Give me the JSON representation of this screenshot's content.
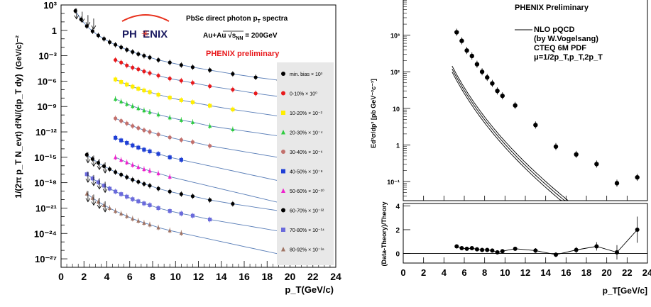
{
  "colors": {
    "curve_left": "#5b7fb8",
    "curve_right": "#000000",
    "logo_accent": "#e8321e",
    "preliminary_red": "#e8191c"
  },
  "left_panel": {
    "logo_text": "PH  ENIX",
    "title": "PbSc direct photon p",
    "title_sub": "T",
    "title_suffix": " spectra",
    "system": "Au+Au √s",
    "system_sub": "NN",
    "system_suffix": " = 200GeV",
    "preliminary": "PHENIX preliminary",
    "ylabel_main": "1/(2π p_T N_evt) d²N/(dp_T dy)",
    "ylabel_unit": "(GeV/c)⁻²",
    "xlabel": "p_T(GeV/c)"
  },
  "right_panel": {
    "title": "PHENIX Preliminary",
    "legend": [
      "NLO pQCD",
      "(by W.Vogelsang)",
      "CTEQ 6M PDF",
      "μ=1/2p_T,p_T,2p_T"
    ],
    "ylabel": "Ed³σ/dp³ [pb GeV⁻²c⁻³]",
    "ratio_ylabel": "(Data-Theory)/Theory",
    "xlabel": "p_T[GeV/c]"
  },
  "chart_data": [
    {
      "type": "scatter",
      "title": "PbSc direct photon pT spectra",
      "xlabel": "p_T(GeV/c)",
      "ylabel": "1/(2π p_T N_evt) d²N/(dp_T dy) (GeV/c)^-2",
      "x_scale": "linear",
      "y_scale": "log",
      "xlim": [
        0,
        24
      ],
      "ylim_exponent": [
        -28,
        3
      ],
      "x_ticks": [
        0,
        2,
        4,
        6,
        8,
        10,
        12,
        14,
        16,
        18,
        20,
        22,
        24
      ],
      "y_tick_labels": [
        {
          "exp": 3,
          "label": "10³"
        },
        {
          "exp": 0,
          "label": "1"
        },
        {
          "exp": -3,
          "label": "10⁻³"
        },
        {
          "exp": -6,
          "label": "10⁻⁶"
        },
        {
          "exp": -9,
          "label": "10⁻⁹"
        },
        {
          "exp": -12,
          "label": "10⁻¹²"
        },
        {
          "exp": -15,
          "label": "10⁻¹⁵"
        },
        {
          "exp": -18,
          "label": "10⁻¹⁸"
        },
        {
          "exp": -21,
          "label": "10⁻²¹"
        },
        {
          "exp": -24,
          "label": "10⁻²⁴"
        },
        {
          "exp": -27,
          "label": "10⁻²⁷"
        }
      ],
      "legend_position": "right",
      "series": [
        {
          "name": "min. bias × 10³",
          "color": "#000000",
          "marker": "circle",
          "x": [
            1.25,
            1.75,
            2.25,
            2.75,
            3.25,
            3.75,
            4.25,
            4.75,
            5.25,
            5.75,
            6.25,
            6.75,
            7.25,
            7.75,
            8.5,
            9.5,
            10.5,
            11.5,
            13,
            15,
            17,
            19
          ],
          "log10y": [
            2.3,
            1.3,
            0.5,
            -0.1,
            -0.6,
            -1.0,
            -1.4,
            -1.7,
            -2.0,
            -2.3,
            -2.55,
            -2.8,
            -3.0,
            -3.2,
            -3.5,
            -3.8,
            -4.1,
            -4.35,
            -4.7,
            -5.15,
            -5.55,
            -5.9
          ]
        },
        {
          "name": "0-10% × 10⁰",
          "color": "#e8191c",
          "marker": "circle",
          "x": [
            4.75,
            5.25,
            5.75,
            6.25,
            6.75,
            7.25,
            7.75,
            8.5,
            9.5,
            10.5,
            11.5,
            13,
            15,
            17
          ],
          "log10y": [
            -3.5,
            -3.8,
            -4.15,
            -4.4,
            -4.6,
            -4.85,
            -5.05,
            -5.35,
            -5.7,
            -5.95,
            -6.2,
            -6.6,
            -7.0,
            -7.45
          ]
        },
        {
          "name": "10-20% × 10⁻²",
          "color": "#ffee00",
          "marker": "square",
          "x": [
            4.75,
            5.25,
            5.75,
            6.25,
            6.75,
            7.25,
            7.75,
            8.5,
            9.5,
            10.5,
            11.5,
            13,
            15
          ],
          "log10y": [
            -5.8,
            -6.1,
            -6.4,
            -6.65,
            -6.9,
            -7.1,
            -7.3,
            -7.6,
            -7.95,
            -8.25,
            -8.5,
            -8.9,
            -9.35
          ]
        },
        {
          "name": "20-30% × 10⁻⁴",
          "color": "#2ecc40",
          "marker": "triangle",
          "x": [
            4.75,
            5.25,
            5.75,
            6.25,
            6.75,
            7.25,
            7.75,
            8.5,
            9.5,
            10.5,
            11.5,
            13,
            15
          ],
          "log10y": [
            -8.1,
            -8.4,
            -8.7,
            -8.95,
            -9.2,
            -9.45,
            -9.65,
            -9.95,
            -10.3,
            -10.6,
            -10.85,
            -11.3,
            -11.7
          ]
        },
        {
          "name": "30-40% × 10⁻⁶",
          "color": "#c2706c",
          "marker": "circle",
          "x": [
            4.75,
            5.25,
            5.75,
            6.25,
            6.75,
            7.25,
            7.75,
            8.5,
            9.5,
            10.5,
            11.5,
            13
          ],
          "log10y": [
            -10.4,
            -10.7,
            -11.0,
            -11.3,
            -11.55,
            -11.8,
            -12.0,
            -12.3,
            -12.65,
            -12.95,
            -13.2,
            -13.65
          ]
        },
        {
          "name": "40-50% × 10⁻⁸",
          "color": "#1f3fd6",
          "marker": "square",
          "x": [
            4.75,
            5.25,
            5.75,
            6.25,
            6.75,
            7.25,
            7.75,
            8.5,
            9.5,
            10.5
          ],
          "log10y": [
            -12.7,
            -13.0,
            -13.3,
            -13.6,
            -13.85,
            -14.1,
            -14.3,
            -14.6,
            -15.0,
            -15.3
          ]
        },
        {
          "name": "50-60% × 10⁻¹⁰",
          "color": "#ee22cc",
          "marker": "triangle",
          "x": [
            4.75,
            5.25,
            5.75,
            6.25,
            6.75,
            7.25,
            7.75,
            8.5,
            9.5
          ],
          "log10y": [
            -15.0,
            -15.3,
            -15.6,
            -15.9,
            -16.15,
            -16.4,
            -16.6,
            -16.9,
            -17.3
          ]
        },
        {
          "name": "60-70% × 10⁻¹²",
          "color": "#000000",
          "marker": "circle",
          "x": [
            2.25,
            2.75,
            3.25,
            3.75,
            4.25,
            4.75,
            5.25,
            5.75,
            6.25,
            6.75,
            7.25,
            7.75,
            8.5,
            9.5,
            10.5,
            11.5,
            13,
            15
          ],
          "log10y": [
            -14.7,
            -15.2,
            -15.65,
            -16.05,
            -16.4,
            -16.75,
            -17.05,
            -17.35,
            -17.65,
            -17.9,
            -18.15,
            -18.35,
            -18.7,
            -19.05,
            -19.35,
            -19.6,
            -20.05,
            -20.5
          ]
        },
        {
          "name": "70-80% × 10⁻¹⁴",
          "color": "#6a6adc",
          "marker": "square",
          "x": [
            2.25,
            2.75,
            3.25,
            3.75,
            4.25,
            4.75,
            5.25,
            5.75,
            6.25,
            6.75,
            7.25,
            7.75,
            8.5,
            9.5,
            10.5,
            11.5,
            13
          ],
          "log10y": [
            -17.0,
            -17.5,
            -17.95,
            -18.35,
            -18.7,
            -19.05,
            -19.35,
            -19.65,
            -19.95,
            -20.2,
            -20.45,
            -20.65,
            -21.0,
            -21.35,
            -21.65,
            -21.9,
            -22.35
          ]
        },
        {
          "name": "80-92% × 10⁻¹⁶",
          "color": "#a07464",
          "marker": "triangle",
          "x": [
            2.25,
            2.75,
            3.25,
            3.75,
            4.25,
            4.75,
            5.25,
            5.75,
            6.25,
            6.75,
            7.25,
            7.75,
            8.5,
            9.5,
            10.5
          ],
          "log10y": [
            -19.3,
            -19.8,
            -20.25,
            -20.65,
            -21.0,
            -21.35,
            -21.65,
            -21.95,
            -22.25,
            -22.5,
            -22.75,
            -22.95,
            -23.3,
            -23.65,
            -23.95
          ]
        }
      ]
    },
    {
      "type": "scatter",
      "title": "PHENIX Preliminary",
      "xlabel": "p_T[GeV/c]",
      "ylabel": "Ed³σ/dp³ [pb GeV⁻²c⁻³]",
      "x_scale": "linear",
      "y_scale": "log",
      "xlim": [
        0,
        24
      ],
      "ylim": [
        0.03,
        10000
      ],
      "x_ticks": [
        0,
        2,
        4,
        6,
        8,
        10,
        12,
        14,
        16,
        18,
        20,
        22,
        24
      ],
      "y_tick_labels": [
        {
          "value": 1000,
          "label": "10³"
        },
        {
          "value": 100,
          "label": "10²"
        },
        {
          "value": 10,
          "label": "10"
        },
        {
          "value": 1,
          "label": "1"
        },
        {
          "value": 0.1,
          "label": "10⁻¹"
        }
      ],
      "series": [
        {
          "name": "data",
          "x": [
            5.25,
            5.75,
            6.25,
            6.75,
            7.25,
            7.75,
            8.25,
            8.75,
            9.25,
            9.75,
            11,
            13,
            15,
            17,
            19,
            21,
            23
          ],
          "y": [
            1200,
            700,
            380,
            270,
            160,
            100,
            70,
            48,
            30,
            22,
            12,
            3.5,
            0.9,
            0.55,
            0.3,
            0.09,
            0.13
          ]
        }
      ],
      "theory_curves": [
        {
          "scale_label": "1/2p_T",
          "A": 900000,
          "n": 4.9,
          "b": 0.22
        },
        {
          "scale_label": "p_T",
          "A": 750000,
          "n": 4.9,
          "b": 0.22
        },
        {
          "scale_label": "2p_T",
          "A": 620000,
          "n": 4.9,
          "b": 0.22
        }
      ]
    },
    {
      "type": "scatter",
      "title": "",
      "xlabel": "p_T[GeV/c]",
      "ylabel": "(Data-Theory)/Theory",
      "xlim": [
        0,
        24
      ],
      "ylim": [
        -0.8,
        4.2
      ],
      "x_ticks": [
        0,
        2,
        4,
        6,
        8,
        10,
        12,
        14,
        16,
        18,
        20,
        22,
        24
      ],
      "y_ticks": [
        0,
        2,
        4
      ],
      "series": [
        {
          "name": "ratio",
          "x": [
            5.25,
            5.75,
            6.25,
            6.75,
            7.25,
            7.75,
            8.25,
            8.75,
            9.25,
            9.75,
            11,
            13,
            15,
            17,
            19,
            21,
            23
          ],
          "y": [
            0.6,
            0.45,
            0.4,
            0.45,
            0.35,
            0.3,
            0.3,
            0.25,
            0.1,
            0.2,
            0.4,
            0.25,
            -0.1,
            0.3,
            0.6,
            0.1,
            2.0
          ],
          "err": [
            0.12,
            0.1,
            0.1,
            0.1,
            0.1,
            0.1,
            0.1,
            0.1,
            0.1,
            0.12,
            0.15,
            0.2,
            0.2,
            0.25,
            0.35,
            0.6,
            1.1
          ]
        }
      ]
    }
  ]
}
